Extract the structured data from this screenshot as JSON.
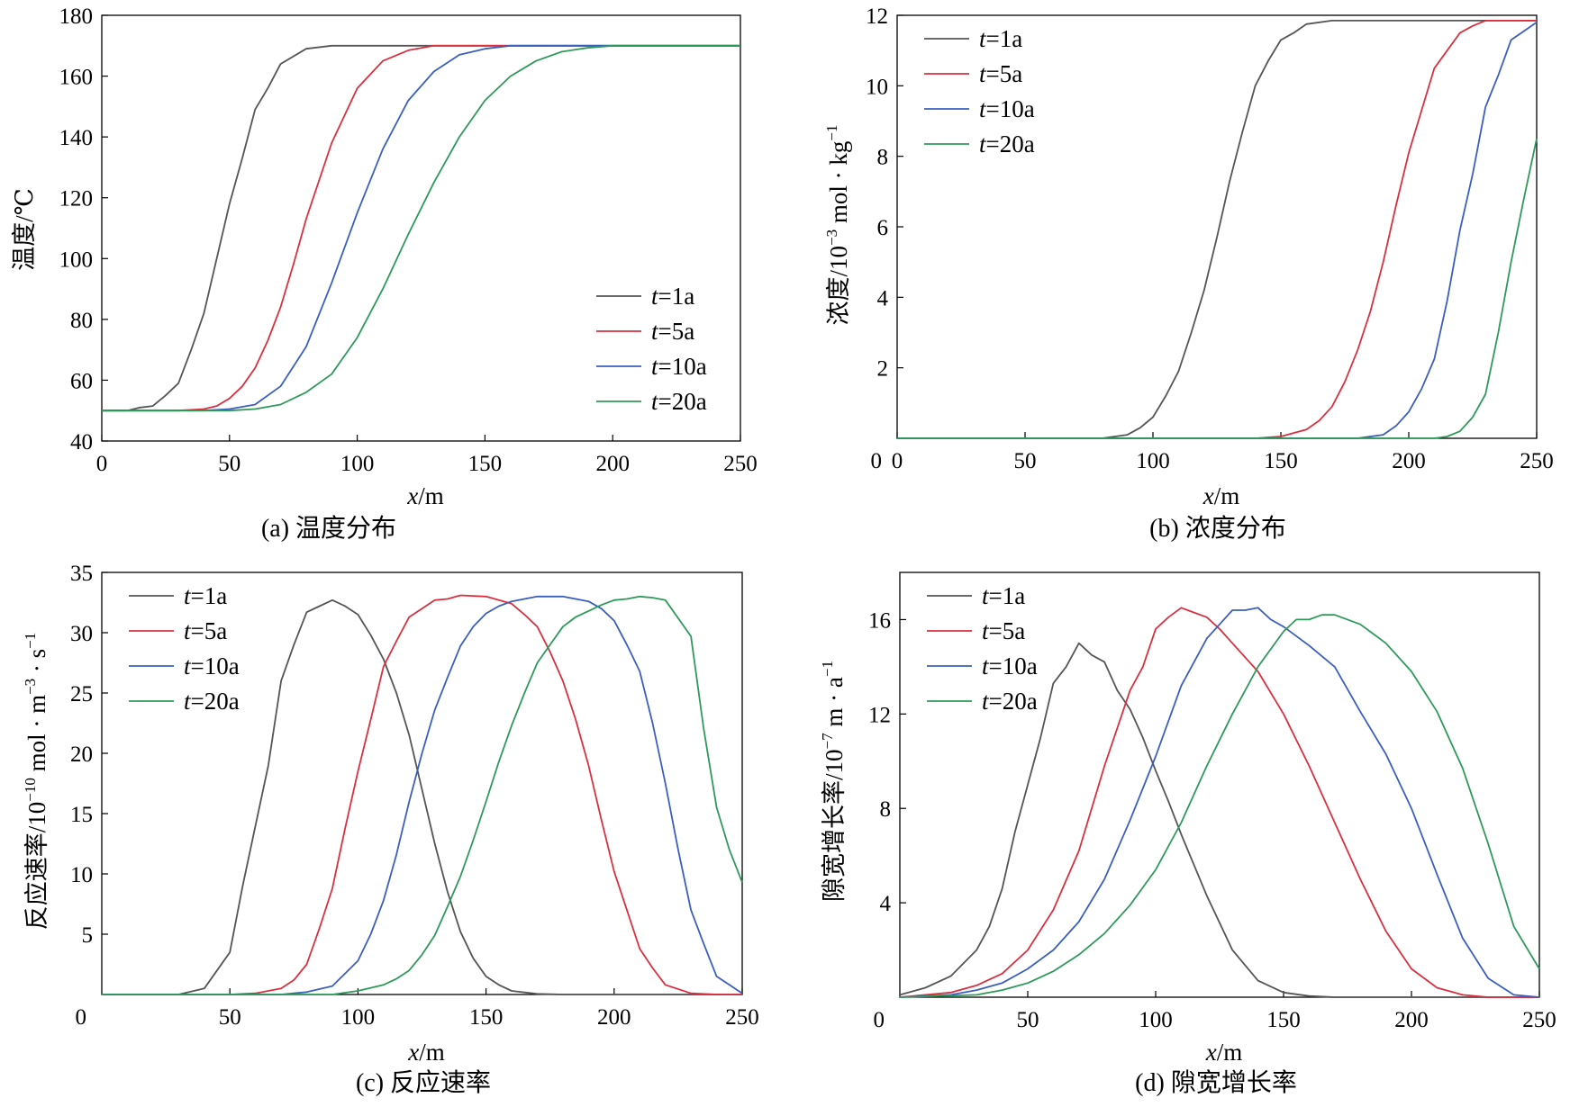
{
  "colors": {
    "t1a": "#555555",
    "t5a": "#d93040",
    "t10a": "#3a5fbf",
    "t20a": "#2e9a5a",
    "axis": "#000000"
  },
  "chart_data": [
    {
      "id": "a",
      "type": "line",
      "caption": "(a) 温度分布",
      "xlabel_var": "x",
      "xlabel_unit": "/m",
      "ylabel": "温度/℃",
      "xlim": [
        0,
        250
      ],
      "ylim": [
        40,
        180
      ],
      "xticks": [
        "0",
        "50",
        "100",
        "150",
        "200",
        "250"
      ],
      "yticks": [
        "40",
        "60",
        "80",
        "100",
        "120",
        "140",
        "160",
        "180"
      ],
      "legend_loc": "lower-right",
      "series": [
        {
          "name_var": "t",
          "name_rest": "=1a",
          "color_key": "t1a",
          "x": [
            0,
            10,
            15,
            20,
            25,
            30,
            35,
            40,
            45,
            50,
            55,
            60,
            65,
            70,
            80,
            90,
            100,
            120,
            250
          ],
          "y": [
            50,
            50,
            51,
            51.5,
            55,
            59,
            70,
            82,
            100,
            118,
            133,
            149,
            156,
            164,
            169,
            170,
            170,
            170,
            170
          ]
        },
        {
          "name_var": "t",
          "name_rest": "=5a",
          "color_key": "t5a",
          "x": [
            0,
            20,
            30,
            40,
            45,
            50,
            55,
            60,
            65,
            70,
            75,
            80,
            90,
            100,
            110,
            120,
            130,
            140,
            250
          ],
          "y": [
            50,
            50,
            50,
            50.5,
            51.5,
            54,
            58,
            64,
            73,
            84,
            98,
            113,
            138,
            156,
            165,
            168.5,
            170,
            170,
            170
          ]
        },
        {
          "name_var": "t",
          "name_rest": "=10a",
          "color_key": "t10a",
          "x": [
            0,
            30,
            40,
            50,
            60,
            70,
            80,
            90,
            100,
            110,
            120,
            130,
            140,
            150,
            160,
            170,
            250
          ],
          "y": [
            50,
            50,
            50,
            50.5,
            52,
            58,
            71,
            92,
            115,
            136,
            152,
            161.5,
            167,
            169,
            170,
            170,
            170
          ]
        },
        {
          "name_var": "t",
          "name_rest": "=20a",
          "color_key": "t20a",
          "x": [
            0,
            40,
            50,
            60,
            70,
            80,
            90,
            100,
            110,
            120,
            130,
            140,
            150,
            160,
            170,
            180,
            190,
            200,
            220,
            250
          ],
          "y": [
            50,
            50,
            50,
            50.5,
            52,
            56,
            62,
            74,
            90,
            108,
            125,
            140,
            152,
            160,
            165,
            168,
            169.3,
            170,
            170,
            170
          ]
        }
      ]
    },
    {
      "id": "b",
      "type": "line",
      "caption": "(b) 浓度分布",
      "xlabel_var": "x",
      "xlabel_unit": "/m",
      "ylabel_main": "浓度/10",
      "ylabel_sup1": "−3",
      "ylabel_mid": " mol · kg",
      "ylabel_sup2": "−1",
      "xlim": [
        0,
        250
      ],
      "ylim": [
        0,
        12
      ],
      "xticks": [
        "0",
        "50",
        "100",
        "150",
        "200",
        "250"
      ],
      "yticks": [
        "2",
        "4",
        "6",
        "8",
        "10",
        "12"
      ],
      "origin_label": "0",
      "legend_loc": "top-left",
      "series": [
        {
          "name_var": "t",
          "name_rest": "=1a",
          "color_key": "t1a",
          "x": [
            0,
            80,
            90,
            95,
            100,
            105,
            110,
            115,
            120,
            125,
            130,
            135,
            140,
            145,
            150,
            155,
            160,
            170,
            180,
            250
          ],
          "y": [
            0,
            0,
            0.1,
            0.3,
            0.6,
            1.2,
            1.9,
            3.0,
            4.2,
            5.7,
            7.3,
            8.7,
            10.0,
            10.7,
            11.3,
            11.5,
            11.75,
            11.85,
            11.85,
            11.85
          ]
        },
        {
          "name_var": "t",
          "name_rest": "=5a",
          "color_key": "t5a",
          "x": [
            0,
            140,
            150,
            160,
            165,
            170,
            175,
            180,
            185,
            190,
            195,
            200,
            205,
            210,
            215,
            220,
            225,
            230,
            250
          ],
          "y": [
            0,
            0,
            0.05,
            0.25,
            0.5,
            0.9,
            1.6,
            2.5,
            3.6,
            5.0,
            6.6,
            8.1,
            9.3,
            10.5,
            11.0,
            11.5,
            11.7,
            11.85,
            11.85
          ]
        },
        {
          "name_var": "t",
          "name_rest": "=10a",
          "color_key": "t10a",
          "x": [
            0,
            180,
            190,
            195,
            200,
            205,
            210,
            215,
            220,
            225,
            230,
            235,
            240,
            245,
            250
          ],
          "y": [
            0,
            0,
            0.1,
            0.35,
            0.75,
            1.4,
            2.25,
            3.9,
            5.9,
            7.5,
            9.4,
            10.3,
            11.3,
            11.55,
            11.8
          ]
        },
        {
          "name_var": "t",
          "name_rest": "=20a",
          "color_key": "t20a",
          "x": [
            0,
            210,
            215,
            220,
            225,
            230,
            235,
            240,
            245,
            250
          ],
          "y": [
            0,
            0,
            0.05,
            0.2,
            0.6,
            1.25,
            3.0,
            5.0,
            6.8,
            8.5
          ]
        }
      ]
    },
    {
      "id": "c",
      "type": "line",
      "caption": "(c) 反应速率",
      "xlabel_var": "x",
      "xlabel_unit": "/m",
      "ylabel_main": "反应速率/10",
      "ylabel_sup1": "−10",
      "ylabel_mid": " mol · m",
      "ylabel_sup2": "−3",
      "ylabel_mid2": " · s",
      "ylabel_sup3": "−1",
      "xlim": [
        0,
        250
      ],
      "ylim": [
        0,
        35
      ],
      "xticks": [
        "50",
        "100",
        "150",
        "200",
        "250"
      ],
      "yticks": [
        "5",
        "10",
        "15",
        "20",
        "25",
        "30",
        "35"
      ],
      "origin_label": "0",
      "legend_loc": "top-left",
      "series": [
        {
          "name_var": "t",
          "name_rest": "=1a",
          "color_key": "t1a",
          "x": [
            0,
            30,
            40,
            45,
            50,
            55,
            60,
            65,
            70,
            75,
            80,
            85,
            90,
            95,
            100,
            105,
            110,
            115,
            120,
            125,
            130,
            135,
            140,
            145,
            150,
            155,
            160,
            170,
            180,
            250
          ],
          "y": [
            0,
            0,
            0.5,
            2,
            3.5,
            9,
            14,
            19,
            26,
            29,
            31.7,
            32.2,
            32.7,
            32.2,
            31.5,
            29.8,
            27.8,
            25,
            21.5,
            17,
            12.5,
            8.5,
            5.2,
            3,
            1.5,
            0.8,
            0.3,
            0.05,
            0,
            0
          ]
        },
        {
          "name_var": "t",
          "name_rest": "=5a",
          "color_key": "t5a",
          "x": [
            0,
            50,
            60,
            70,
            75,
            80,
            85,
            90,
            95,
            100,
            105,
            110,
            115,
            120,
            125,
            130,
            135,
            140,
            150,
            160,
            165,
            170,
            175,
            180,
            185,
            190,
            195,
            200,
            205,
            210,
            215,
            220,
            230,
            240,
            250
          ],
          "y": [
            0,
            0,
            0.1,
            0.5,
            1.2,
            2.5,
            5.5,
            8.8,
            13.8,
            18.5,
            22.8,
            27.2,
            29.3,
            31.3,
            32,
            32.7,
            32.8,
            33.1,
            33,
            32.4,
            31.5,
            30.5,
            28.4,
            26,
            22.8,
            19,
            14.5,
            10.2,
            7,
            3.8,
            2.2,
            0.8,
            0.1,
            0,
            0
          ]
        },
        {
          "name_var": "t",
          "name_rest": "=10a",
          "color_key": "t10a",
          "x": [
            0,
            70,
            80,
            90,
            100,
            105,
            110,
            115,
            120,
            125,
            130,
            135,
            140,
            145,
            150,
            155,
            160,
            165,
            170,
            180,
            190,
            195,
            200,
            205,
            210,
            215,
            220,
            225,
            230,
            235,
            240,
            245,
            250
          ],
          "y": [
            0,
            0,
            0.2,
            0.7,
            2.8,
            5.0,
            7.8,
            11.6,
            16,
            20,
            23.6,
            26.3,
            28.9,
            30.5,
            31.6,
            32.2,
            32.6,
            32.8,
            33,
            33,
            32.6,
            32.0,
            31.0,
            29.0,
            26.8,
            22.5,
            17.5,
            12.0,
            7.0,
            4.2,
            1.5,
            0.8,
            0.1
          ]
        },
        {
          "name_var": "t",
          "name_rest": "=20a",
          "color_key": "t20a",
          "x": [
            0,
            90,
            100,
            110,
            115,
            120,
            125,
            130,
            135,
            140,
            145,
            150,
            155,
            160,
            165,
            170,
            175,
            180,
            185,
            190,
            195,
            200,
            205,
            210,
            215,
            220,
            225,
            230,
            235,
            240,
            245,
            250
          ],
          "y": [
            0,
            0,
            0.3,
            0.8,
            1.3,
            2.0,
            3.3,
            4.9,
            7.3,
            9.8,
            12.8,
            16,
            19.3,
            22.3,
            25,
            27.5,
            29,
            30.5,
            31.3,
            31.8,
            32.3,
            32.7,
            32.8,
            33,
            32.9,
            32.7,
            31.2,
            29.7,
            22,
            15.5,
            12,
            9.3
          ]
        }
      ]
    },
    {
      "id": "d",
      "type": "line",
      "caption": "(d) 隙宽增长率",
      "xlabel_var": "x",
      "xlabel_unit": "/m",
      "ylabel_main": "隙宽增长率/10",
      "ylabel_sup1": "−7",
      "ylabel_mid": " m · a",
      "ylabel_sup2": "−1",
      "xlim": [
        0,
        250
      ],
      "ylim": [
        0,
        18
      ],
      "xticks": [
        "50",
        "100",
        "150",
        "200",
        "250"
      ],
      "yticks": [
        "4",
        "8",
        "12",
        "16"
      ],
      "origin_label": "0",
      "legend_loc": "top-left",
      "series": [
        {
          "name_var": "t",
          "name_rest": "=1a",
          "color_key": "t1a",
          "x": [
            0,
            10,
            20,
            30,
            35,
            40,
            45,
            50,
            55,
            60,
            65,
            70,
            75,
            80,
            85,
            90,
            95,
            100,
            105,
            110,
            115,
            120,
            130,
            140,
            150,
            160,
            170,
            250
          ],
          "y": [
            0.1,
            0.4,
            0.9,
            2.0,
            3.0,
            4.6,
            7.0,
            9.0,
            11.0,
            13.3,
            14.0,
            15.0,
            14.5,
            14.2,
            13.0,
            12.2,
            11.0,
            9.6,
            8.3,
            6.9,
            5.6,
            4.3,
            2.0,
            0.7,
            0.2,
            0.05,
            0,
            0
          ]
        },
        {
          "name_var": "t",
          "name_rest": "=5a",
          "color_key": "t5a",
          "x": [
            0,
            10,
            20,
            30,
            40,
            50,
            60,
            70,
            80,
            90,
            95,
            100,
            105,
            110,
            115,
            120,
            125,
            130,
            140,
            150,
            160,
            170,
            180,
            190,
            200,
            210,
            220,
            230,
            250
          ],
          "y": [
            0,
            0.1,
            0.2,
            0.5,
            1.0,
            2.0,
            3.7,
            6.2,
            9.8,
            13.0,
            14.0,
            15.6,
            16.1,
            16.5,
            16.3,
            16.1,
            15.6,
            15.0,
            13.8,
            12.0,
            9.8,
            7.4,
            5.0,
            2.8,
            1.2,
            0.4,
            0.1,
            0,
            0
          ]
        },
        {
          "name_var": "t",
          "name_rest": "=10a",
          "color_key": "t10a",
          "x": [
            0,
            20,
            30,
            40,
            50,
            60,
            70,
            80,
            90,
            100,
            110,
            120,
            125,
            130,
            135,
            140,
            145,
            150,
            160,
            170,
            180,
            190,
            200,
            210,
            220,
            230,
            240,
            250
          ],
          "y": [
            0,
            0.1,
            0.3,
            0.6,
            1.2,
            2.0,
            3.2,
            5.0,
            7.5,
            10.2,
            13.2,
            15.2,
            15.8,
            16.4,
            16.4,
            16.5,
            16.0,
            15.7,
            14.9,
            14.0,
            12.1,
            10.3,
            8.0,
            5.2,
            2.5,
            0.8,
            0.1,
            0
          ]
        },
        {
          "name_var": "t",
          "name_rest": "=20a",
          "color_key": "t20a",
          "x": [
            0,
            30,
            40,
            50,
            60,
            70,
            80,
            90,
            100,
            110,
            120,
            130,
            140,
            150,
            155,
            160,
            165,
            170,
            180,
            190,
            200,
            210,
            220,
            230,
            240,
            250
          ],
          "y": [
            0,
            0.1,
            0.3,
            0.6,
            1.1,
            1.8,
            2.7,
            3.9,
            5.4,
            7.4,
            9.8,
            12.0,
            14.0,
            15.5,
            16.0,
            16.0,
            16.2,
            16.2,
            15.8,
            15.0,
            13.8,
            12.1,
            9.7,
            6.5,
            3.0,
            1.2
          ]
        }
      ]
    }
  ]
}
